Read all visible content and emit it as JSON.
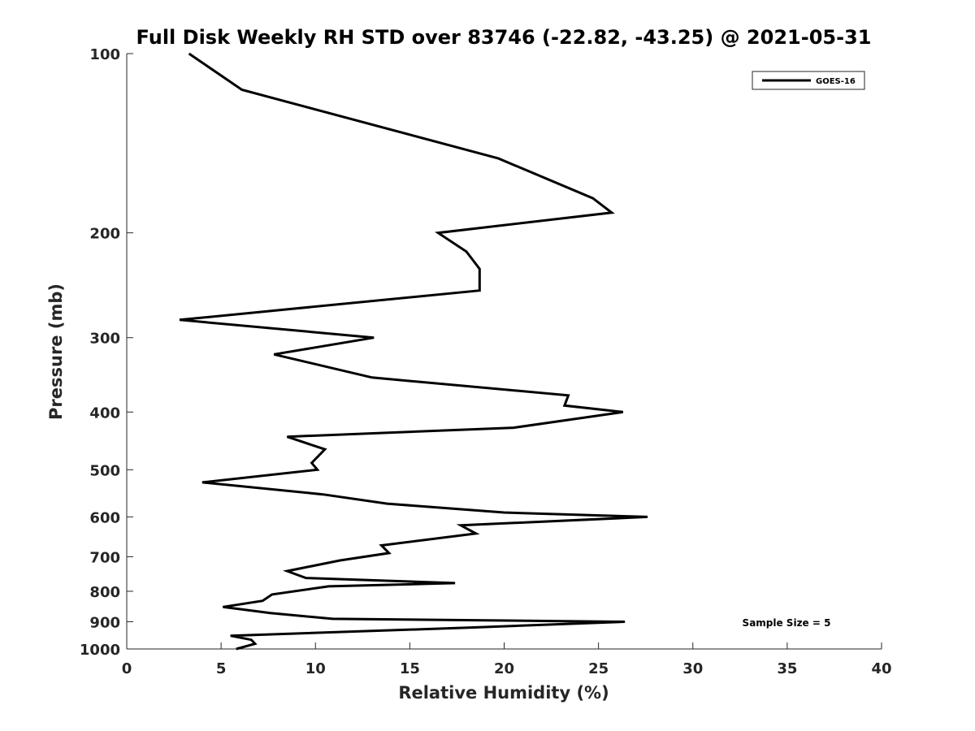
{
  "chart_data": {
    "type": "line",
    "title": "Full Disk Weekly RH STD over 83746 (-22.82, -43.25) @ 2021-05-31",
    "xlabel": "Relative Humidity (%)",
    "ylabel": "Pressure (mb)",
    "xlim": [
      0,
      40
    ],
    "ylim": [
      100,
      1000
    ],
    "y_scale": "log",
    "y_reversed": true,
    "x_ticks": [
      0,
      5,
      10,
      15,
      20,
      25,
      30,
      35,
      40
    ],
    "y_ticks": [
      100,
      200,
      300,
      400,
      500,
      600,
      700,
      800,
      900,
      1000
    ],
    "grid": false,
    "legend": "top-right",
    "series": [
      {
        "name": "GOES-16",
        "color": "#000000",
        "points": [
          [
            3.3,
            100
          ],
          [
            6.1,
            115
          ],
          [
            19.7,
            150
          ],
          [
            24.7,
            175
          ],
          [
            25.7,
            185
          ],
          [
            16.5,
            200
          ],
          [
            18.0,
            215
          ],
          [
            18.7,
            230
          ],
          [
            18.7,
            250
          ],
          [
            2.8,
            280
          ],
          [
            13.1,
            300
          ],
          [
            7.8,
            320
          ],
          [
            13.0,
            350
          ],
          [
            23.4,
            375
          ],
          [
            23.2,
            390
          ],
          [
            26.3,
            400
          ],
          [
            20.5,
            425
          ],
          [
            8.5,
            440
          ],
          [
            10.5,
            462
          ],
          [
            9.8,
            487
          ],
          [
            10.1,
            500
          ],
          [
            4.0,
            525
          ],
          [
            10.4,
            550
          ],
          [
            13.8,
            570
          ],
          [
            20.0,
            590
          ],
          [
            27.6,
            600
          ],
          [
            17.7,
            620
          ],
          [
            18.5,
            640
          ],
          [
            13.5,
            670
          ],
          [
            13.9,
            690
          ],
          [
            11.3,
            710
          ],
          [
            8.5,
            740
          ],
          [
            9.5,
            760
          ],
          [
            17.4,
            775
          ],
          [
            10.7,
            785
          ],
          [
            7.7,
            810
          ],
          [
            7.2,
            830
          ],
          [
            5.1,
            850
          ],
          [
            7.6,
            870
          ],
          [
            10.9,
            890
          ],
          [
            26.4,
            900
          ],
          [
            18.4,
            920
          ],
          [
            5.5,
            950
          ],
          [
            6.6,
            965
          ],
          [
            6.8,
            980
          ],
          [
            5.8,
            1000
          ]
        ]
      }
    ],
    "annotations": [
      {
        "text": "Sample Size = 5"
      }
    ]
  }
}
